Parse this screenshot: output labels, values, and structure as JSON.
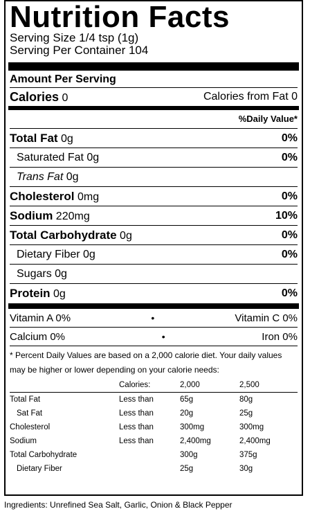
{
  "title": "Nutrition Facts",
  "serving_size": "Serving Size 1/4 tsp (1g)",
  "servings_per_container": "Serving Per Container 104",
  "amount_per_serving": "Amount Per Serving",
  "calories": {
    "label": "Calories",
    "value": "0",
    "from_fat": "Calories from Fat 0"
  },
  "daily_value_header": "%Daily Value*",
  "nutrients": [
    {
      "label": "Total Fat",
      "amount": "0g",
      "pct": "0%",
      "bold": true,
      "indent": false
    },
    {
      "label": "Saturated Fat",
      "amount": "0g",
      "pct": "0%",
      "bold": false,
      "indent": true
    },
    {
      "label": "Trans Fat",
      "amount": "0g",
      "pct": "",
      "bold": false,
      "indent": true,
      "italic": true
    },
    {
      "label": "Cholesterol",
      "amount": "0mg",
      "pct": "0%",
      "bold": true,
      "indent": false
    },
    {
      "label": "Sodium",
      "amount": "220mg",
      "pct": "10%",
      "bold": true,
      "indent": false
    },
    {
      "label": "Total Carbohydrate",
      "amount": "0g",
      "pct": "0%",
      "bold": true,
      "indent": false
    },
    {
      "label": "Dietary Fiber",
      "amount": "0g",
      "pct": "0%",
      "bold": false,
      "indent": true
    },
    {
      "label": "Sugars",
      "amount": "0g",
      "pct": "",
      "bold": false,
      "indent": true
    },
    {
      "label": "Protein",
      "amount": "0g",
      "pct": "0%",
      "bold": true,
      "indent": false
    }
  ],
  "vitamins": [
    {
      "left": "Vitamin A 0%",
      "right": "Vitamin C 0%"
    },
    {
      "left": "Calcium 0%",
      "right": "Iron 0%"
    }
  ],
  "footnote": "* Percent Daily Values are based on a 2,000 calorie diet. Your daily values may be higher or lower depending on your calorie needs:",
  "dv_table": {
    "header": [
      "",
      "Calories:",
      "2,000",
      "2,500"
    ],
    "rows": [
      [
        "Total Fat",
        "Less than",
        "65g",
        "80g"
      ],
      [
        "Sat Fat",
        "Less than",
        "20g",
        "25g"
      ],
      [
        "Cholesterol",
        "Less than",
        "300mg",
        "300mg"
      ],
      [
        "Sodium",
        "Less than",
        "2,400mg",
        "2,400mg"
      ],
      [
        "Total Carbohydrate",
        "",
        "300g",
        "375g"
      ],
      [
        "Dietary Fiber",
        "",
        "25g",
        "30g"
      ]
    ]
  },
  "ingredients": "Ingredients: Unrefined Sea Salt, Garlic, Onion & Black Pepper"
}
